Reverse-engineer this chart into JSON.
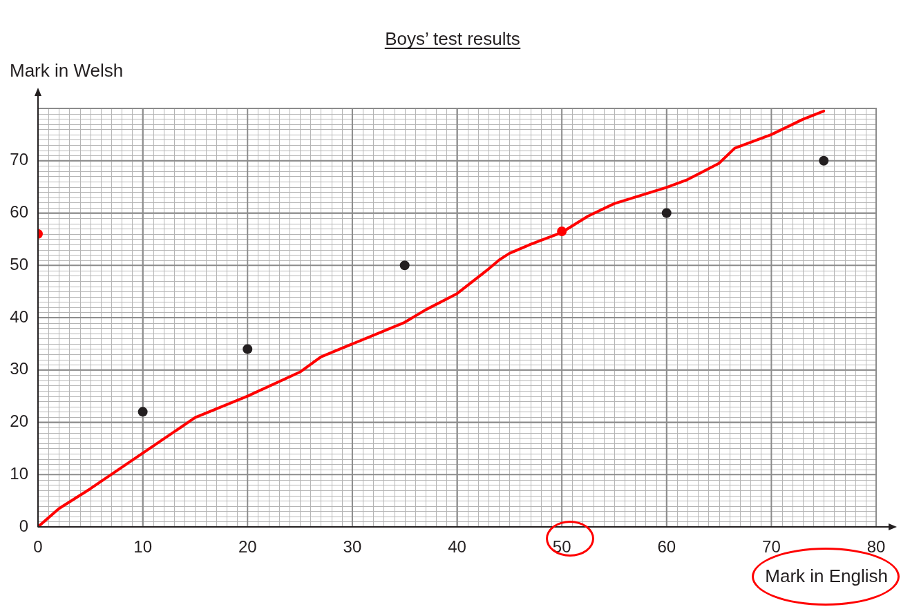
{
  "chart_data": {
    "type": "scatter",
    "title": "Boys’ test results",
    "xlabel": "Mark in English",
    "ylabel": "Mark in Welsh",
    "xlim": [
      0,
      80
    ],
    "xticks": [
      0,
      10,
      20,
      30,
      40,
      50,
      60,
      70,
      80
    ],
    "ylim": [
      0,
      80
    ],
    "yticks": [
      0,
      10,
      20,
      30,
      40,
      50,
      60,
      70,
      {
        "value": 80,
        "label": null
      }
    ],
    "grid": true,
    "marker": "circle",
    "series": [
      {
        "color": "#231f20",
        "x": [
          10,
          20,
          35,
          60,
          75
        ],
        "values": [
          22,
          34,
          50,
          60,
          70
        ]
      },
      {
        "type": "line",
        "color": "#ff0000",
        "marker": "none",
        "x": [
          0,
          2,
          5,
          10,
          15,
          20,
          25,
          27,
          35,
          37,
          40,
          43,
          44,
          45,
          47,
          50,
          52.5,
          55,
          60,
          62,
          65,
          66.5,
          70,
          73,
          75
        ],
        "values": [
          0,
          3.5,
          7.3,
          14.1,
          20.9,
          25,
          29.6,
          32.5,
          39.1,
          41.5,
          44.6,
          49.3,
          51,
          52.3,
          54,
          56.3,
          59.4,
          61.8,
          64.9,
          66.4,
          69.5,
          72.4,
          75,
          77.9,
          79.5
        ]
      },
      {
        "type": "scatter",
        "color": "#ff0000",
        "x": [
          0,
          50
        ],
        "values": [
          56,
          56.5
        ]
      }
    ]
  }
}
